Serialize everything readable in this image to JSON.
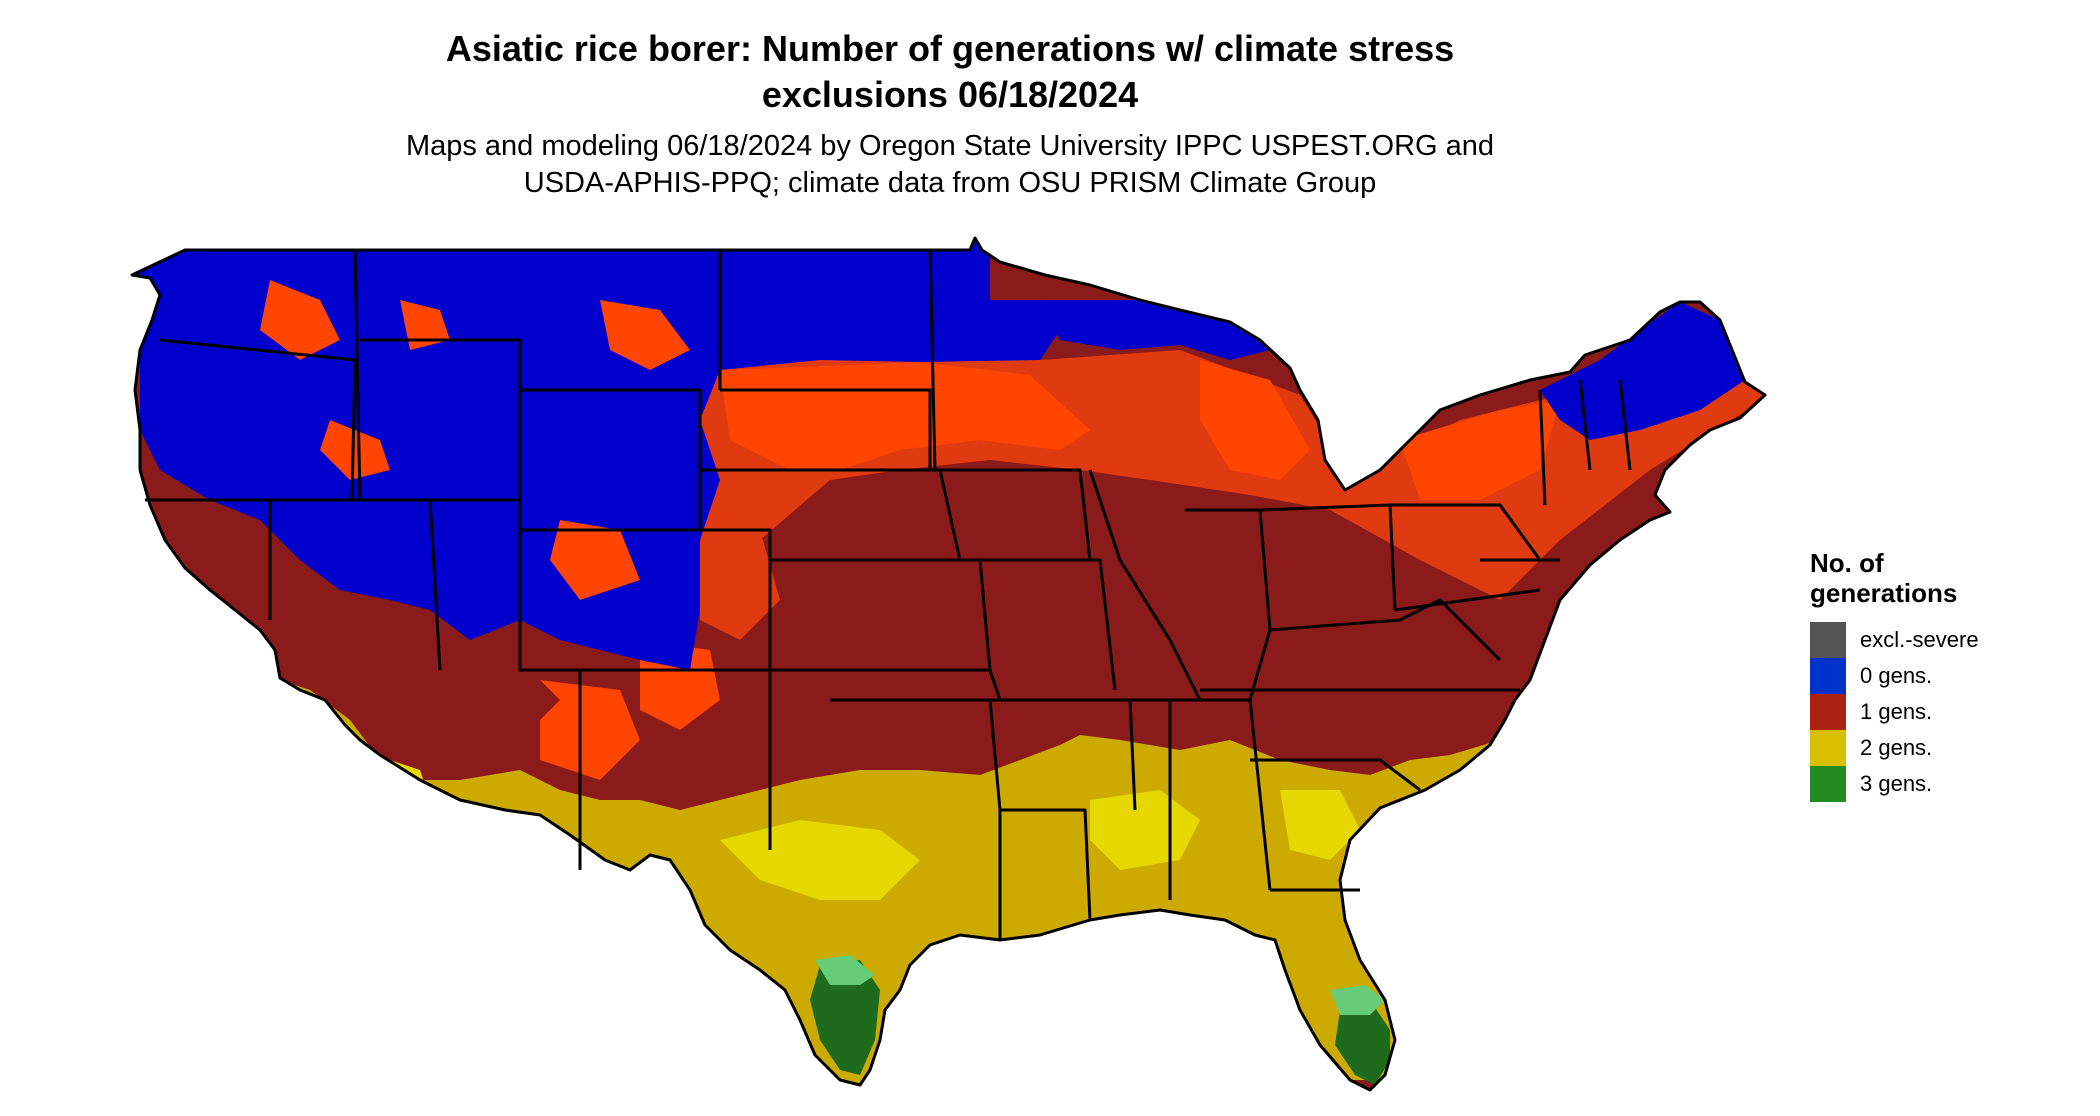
{
  "title": {
    "line1": "Asiatic rice borer: Number of generations w/ climate stress",
    "line2": "exclusions 06/18/2024"
  },
  "subtitle": {
    "line1": "Maps and modeling 06/18/2024 by Oregon State University IPPC USPEST.ORG and",
    "line2": "USDA-APHIS-PPQ; climate data from OSU PRISM Climate Group"
  },
  "legend": {
    "title_line1": "No. of",
    "title_line2": "generations",
    "items": [
      {
        "label": "excl.-severe",
        "color": "#555555"
      },
      {
        "label": "0 gens.",
        "color": "#0033cc"
      },
      {
        "label": "1 gens.",
        "color": "#aa2211"
      },
      {
        "label": "2 gens.",
        "color": "#d8c000"
      },
      {
        "label": "3 gens.",
        "color": "#228b22"
      }
    ]
  },
  "map_colors": {
    "zero_gens": "#0000cc",
    "one_gen_dark": "#8b1a1a",
    "one_gen_mid": "#cc3300",
    "one_gen_light": "#ff4500",
    "two_gens": "#ccaa00",
    "two_gens_light": "#e6d800",
    "three_gens": "#1e6b1e",
    "three_gens_light": "#66cc77",
    "boundaries": "#000000"
  }
}
